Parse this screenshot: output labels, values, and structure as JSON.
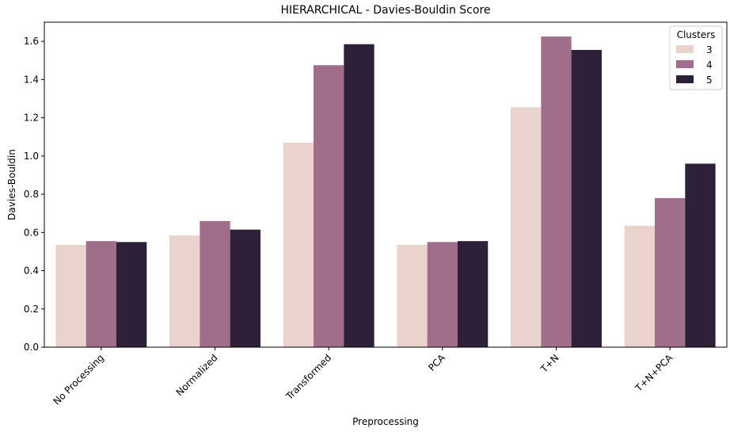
{
  "chart_data": {
    "type": "bar",
    "title": "HIERARCHICAL - Davies-Bouldin Score",
    "xlabel": "Preprocessing",
    "ylabel": "Davies-Bouldin",
    "categories": [
      "No Processing",
      "Normalized",
      "Transformed",
      "PCA",
      "T+N",
      "T+N+PCA"
    ],
    "series": [
      {
        "name": "3",
        "color": "#ead3cd",
        "values": [
          0.535,
          0.585,
          1.07,
          0.535,
          1.255,
          0.635
        ]
      },
      {
        "name": "4",
        "color": "#a06d8b",
        "values": [
          0.555,
          0.66,
          1.475,
          0.55,
          1.625,
          0.78
        ]
      },
      {
        "name": "5",
        "color": "#2d2039",
        "values": [
          0.55,
          0.615,
          1.585,
          0.555,
          1.555,
          0.96
        ]
      }
    ],
    "ylim": [
      0,
      1.7
    ],
    "yticks": [
      "0.0",
      "0.2",
      "0.4",
      "0.6",
      "0.8",
      "1.0",
      "1.2",
      "1.4",
      "1.6"
    ],
    "grid": false,
    "legend": {
      "title": "Clusters",
      "position": "top-right"
    }
  }
}
